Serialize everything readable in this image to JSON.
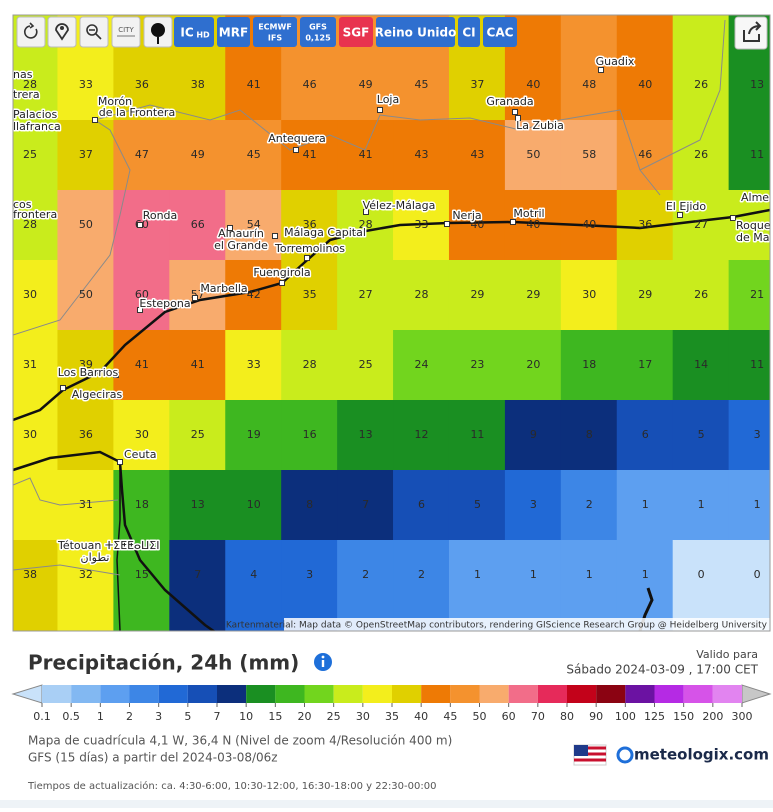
{
  "toolbar": {
    "city": "CITY",
    "buttons": [
      {
        "label": "IC",
        "sub": "HD"
      },
      {
        "label": "MRF"
      },
      {
        "label": "ECMWF",
        "sub": "IFS"
      },
      {
        "label": "GFS",
        "sub": "0,125"
      },
      {
        "label": "SGF"
      },
      {
        "label": "Reino Unido"
      },
      {
        "label": "CI"
      },
      {
        "label": "CAC"
      }
    ]
  },
  "map": {
    "grid": [
      [
        28,
        33,
        36,
        38,
        41,
        46,
        49,
        45,
        37,
        40,
        48,
        40,
        26,
        13
      ],
      [
        25,
        37,
        47,
        49,
        45,
        41,
        41,
        43,
        43,
        50,
        58,
        46,
        26,
        11
      ],
      [
        28,
        50,
        60,
        66,
        54,
        36,
        28,
        33,
        40,
        40,
        40,
        36,
        27,
        null
      ],
      [
        30,
        50,
        60,
        57,
        42,
        35,
        27,
        28,
        29,
        29,
        30,
        29,
        26,
        21
      ],
      [
        31,
        39,
        41,
        41,
        33,
        28,
        25,
        24,
        23,
        20,
        18,
        17,
        14,
        11
      ],
      [
        30,
        36,
        30,
        25,
        19,
        16,
        13,
        12,
        11,
        9,
        8,
        6,
        5,
        3
      ],
      [
        null,
        31,
        18,
        13,
        10,
        8,
        7,
        6,
        5,
        3,
        2,
        1,
        1,
        1
      ],
      [
        38,
        32,
        15,
        7,
        4,
        3,
        2,
        2,
        1,
        1,
        1,
        1,
        0,
        0
      ]
    ],
    "places": [
      "nas",
      "trera",
      "Morón",
      "de la Frontera",
      "Palacios",
      "llafranca",
      "Loja",
      "Granada",
      "La Zubia",
      "Guadix",
      "Antequera",
      "cos",
      "frontera",
      "Ronda",
      "Alhaurín",
      "el Grande",
      "Torremolinos",
      "Málaga Capital",
      "Vélez-Málaga",
      "Nerja",
      "Motril",
      "El Ejido",
      "Alme",
      "Roque",
      "de Ma",
      "Fuengirola",
      "Marbella",
      "Estepona",
      "Los Barrios",
      "Algeciras",
      "Ceuta",
      "Tétouan ⵜⵉⵟⵟⴰⵡⵉⵏ",
      "تطوان"
    ],
    "attribution": "Kartenmaterial: Map data © OpenStreetMap contributors, rendering GIScience Research Group @ Heidelberg University"
  },
  "legend": {
    "title": "Precipitación, 24h (mm)",
    "valid_label": "Valido para",
    "valid_time": "Sábado 2024-03-09 , 17:00 CET",
    "thresholds": [
      0.1,
      0.5,
      1,
      2,
      3,
      5,
      7,
      10,
      15,
      20,
      25,
      30,
      35,
      40,
      45,
      50,
      60,
      70,
      80,
      90,
      100,
      125,
      150,
      200,
      300
    ],
    "colors": [
      "#a9cff5",
      "#82b8f2",
      "#5d9ff0",
      "#3d86e6",
      "#2169d6",
      "#164fb6",
      "#0c2f7c",
      "#1a8f22",
      "#3eb720",
      "#72d51e",
      "#c9ec1c",
      "#f3ee1c",
      "#e0d000",
      "#ee7a05",
      "#f4922e",
      "#f8ab6d",
      "#f26d89",
      "#e62a5a",
      "#c3021a",
      "#8b0312",
      "#6b12a2",
      "#b52ae4",
      "#d653e8",
      "#e284f0"
    ],
    "below_color": "#c9e2fa",
    "above_color": "#c7c7c7"
  },
  "footer": {
    "grid_info": "Mapa de cuadrícula 4,1 W, 36,4 N (Nivel de zoom 4/Resolución 400 m)",
    "model_info": "GFS (15 días) a partir del 2024-03-08/06z",
    "brand": "meteologix.com",
    "update_times": "Tiempos de actualización: ca. 4:30-6:00, 10:30-12:00, 16:30-18:00 y 22:30-00:00"
  }
}
